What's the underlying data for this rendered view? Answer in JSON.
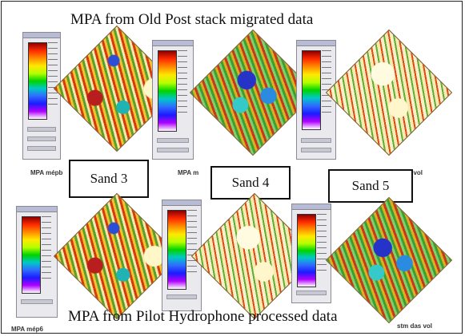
{
  "titles": {
    "top": "MPA from Old Post stack  migrated data",
    "bottom": "MPA from Pilot Hydrophone  processed data"
  },
  "sand_labels": [
    "Sand 3",
    "Sand 4",
    "Sand 5"
  ],
  "captions": {
    "top_left": "MPA mépb",
    "top_mid": "MPA m",
    "top_right": "mig vol",
    "bottom_left": "MPA mép6",
    "bottom_right": "stm das vol"
  },
  "colorbar_gradient": [
    "#8b0000",
    "#ff2a00",
    "#ff8c00",
    "#ffe800",
    "#b6ff00",
    "#00d400",
    "#00c8c8",
    "#2f6bff",
    "#1b1bff",
    "#b000ff",
    "#ffffff"
  ]
}
